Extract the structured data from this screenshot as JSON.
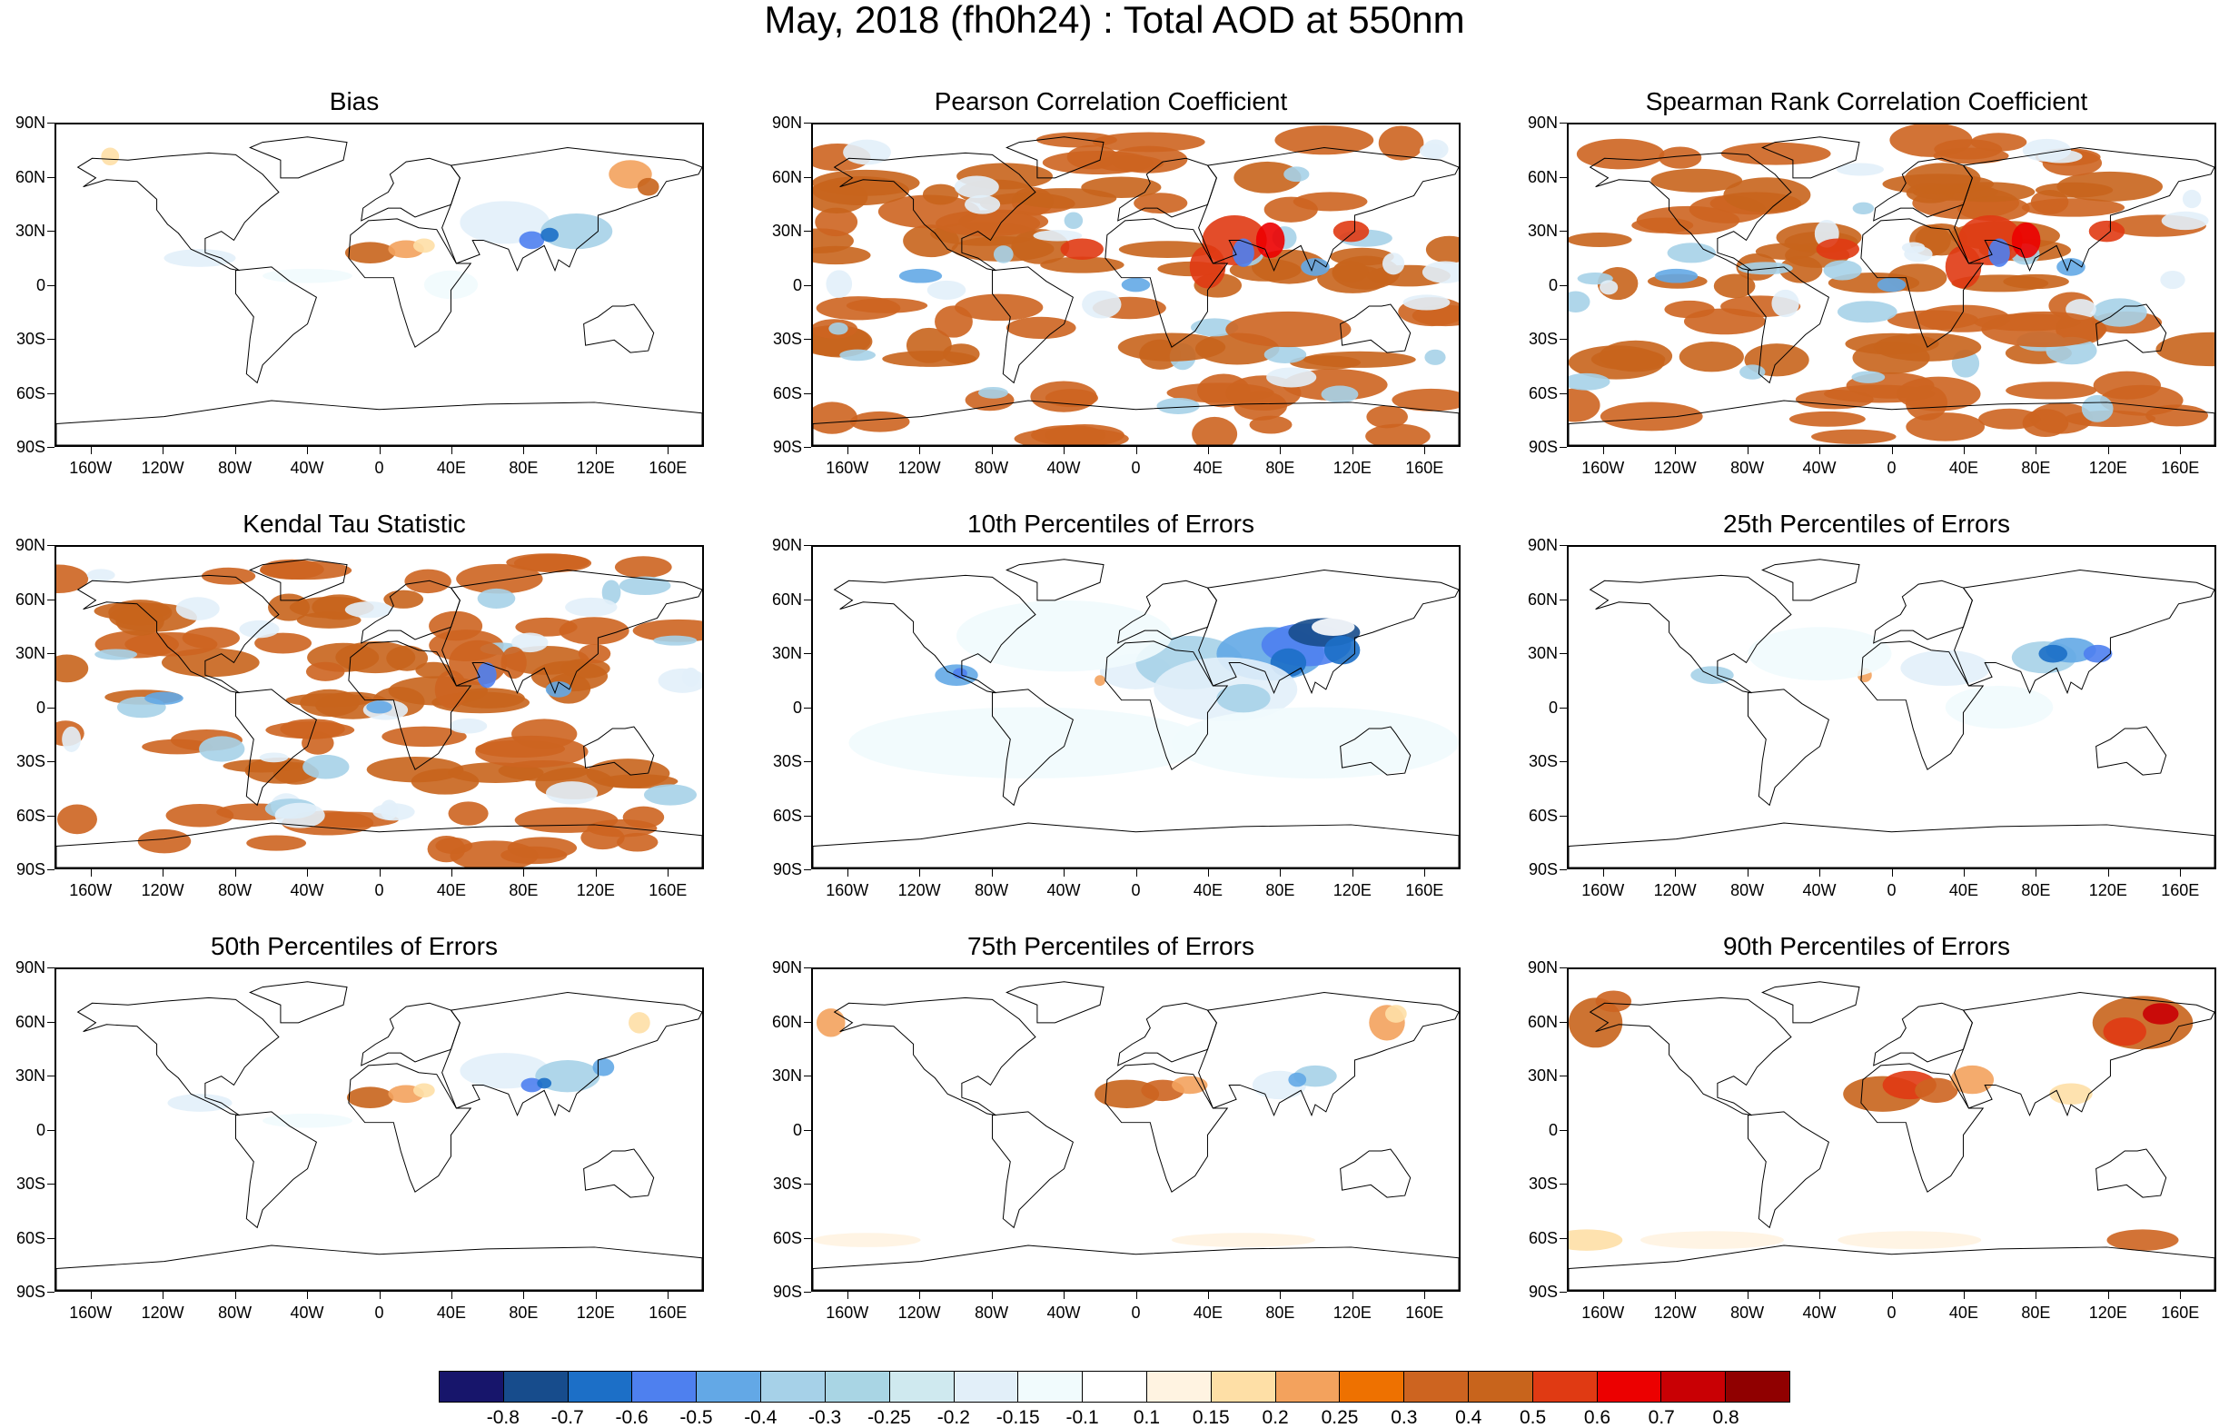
{
  "title": "May, 2018 (fh0h24) : Total AOD at 550nm",
  "lat_labels": [
    "90N",
    "60N",
    "30N",
    "0",
    "30S",
    "60S",
    "90S"
  ],
  "lon_labels": [
    "160W",
    "120W",
    "80W",
    "40W",
    "0",
    "40E",
    "80E",
    "120E",
    "160E"
  ],
  "panels": [
    {
      "title": "Bias",
      "pattern": "bias"
    },
    {
      "title": "Pearson Correlation Coefficient",
      "pattern": "corr"
    },
    {
      "title": "Spearman Rank Correlation Coefficient",
      "pattern": "corr2"
    },
    {
      "title": "Kendal Tau Statistic",
      "pattern": "kendall"
    },
    {
      "title": "10th Percentiles of Errors",
      "pattern": "p10"
    },
    {
      "title": "25th Percentiles of Errors",
      "pattern": "p25"
    },
    {
      "title": "50th Percentiles of Errors",
      "pattern": "p50"
    },
    {
      "title": "75th Percentiles of Errors",
      "pattern": "p75"
    },
    {
      "title": "90th Percentiles of Errors",
      "pattern": "p90"
    }
  ],
  "colorbar": {
    "labels": [
      "-0.8",
      "-0.7",
      "-0.6",
      "-0.5",
      "-0.4",
      "-0.3",
      "-0.25",
      "-0.2",
      "-0.15",
      "-0.1",
      "0.1",
      "0.15",
      "0.2",
      "0.25",
      "0.3",
      "0.4",
      "0.5",
      "0.6",
      "0.7",
      "0.8"
    ],
    "colors": [
      "#17156b",
      "#174c8c",
      "#1c6fc7",
      "#4e80ef",
      "#63a8e6",
      "#a6d1e8",
      "#a9d5e4",
      "#cfe9ef",
      "#e2eff9",
      "#f1fbfd",
      "#ffffff",
      "#fff3e1",
      "#fedfa6",
      "#f3a25d",
      "#ee7100",
      "#cd6420",
      "#c8641c",
      "#e03a13",
      "#ec0000",
      "#c90004",
      "#900000"
    ]
  }
}
